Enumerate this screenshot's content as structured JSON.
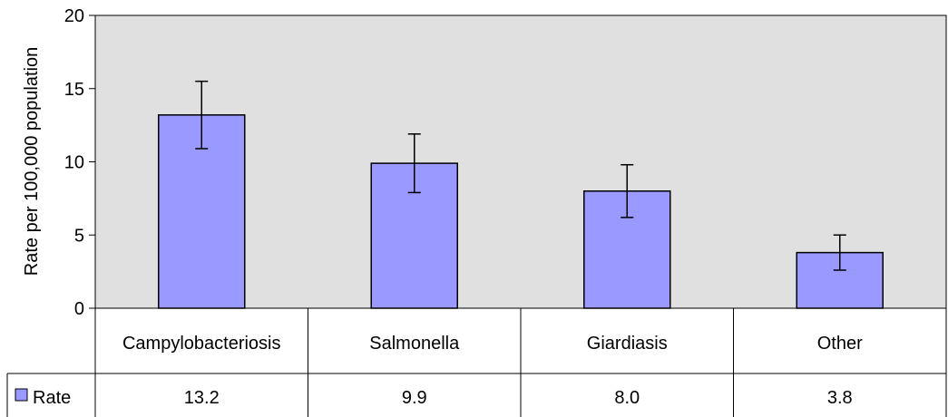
{
  "chart_data": {
    "type": "bar",
    "title": "",
    "xlabel": "",
    "ylabel": "Rate per 100,000 population",
    "ylim": [
      0,
      20
    ],
    "yticks": [
      0,
      5,
      10,
      15,
      20
    ],
    "categories": [
      "Campylobacteriosis",
      "Salmonella",
      "Giardiasis",
      "Other"
    ],
    "series": [
      {
        "name": "Rate",
        "values": [
          13.2,
          9.9,
          8.0,
          3.8
        ],
        "value_labels": [
          "13.2",
          "9.9",
          "8.0",
          "3.8"
        ],
        "error_low": [
          10.9,
          7.9,
          6.2,
          2.6
        ],
        "error_high": [
          15.5,
          11.9,
          9.8,
          5.0
        ],
        "color": "#9999ff"
      }
    ],
    "grid": false,
    "legend": "data-table-left",
    "plot_background": "#e0e0e0"
  }
}
